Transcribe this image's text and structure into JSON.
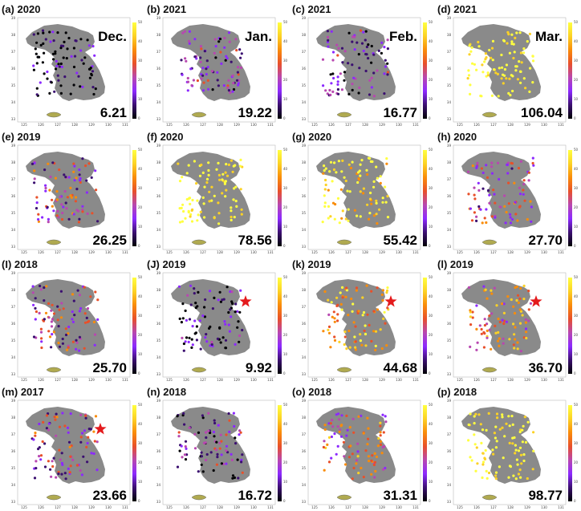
{
  "figure": {
    "colorbar_colors": [
      "#000004",
      "#3b0f70",
      "#8c29ff",
      "#b847b0",
      "#e8502a",
      "#f98c0a",
      "#fcd225",
      "#ffff40"
    ],
    "colorbar_ticks": [
      "0",
      "10",
      "20",
      "30",
      "40",
      "50"
    ],
    "lon_ticks": [
      "125",
      "126",
      "127",
      "128",
      "129",
      "130",
      "131"
    ],
    "lat_ticks": [
      "33",
      "34",
      "35",
      "36",
      "37",
      "38",
      "39"
    ],
    "land_color": "#8a8a8a",
    "star_color": "#e41a1c"
  },
  "chart_data": [
    {
      "type": "scatter",
      "panel": "(a) 2020",
      "month": "Dec.",
      "mean_value": "6.21",
      "colorbar_range": [
        0,
        50
      ],
      "star": false
    },
    {
      "type": "scatter",
      "panel": "(b) 2021",
      "month": "Jan.",
      "mean_value": "19.22",
      "colorbar_range": [
        0,
        50
      ],
      "star": false
    },
    {
      "type": "scatter",
      "panel": "(c) 2021",
      "month": "Feb.",
      "mean_value": "16.77",
      "colorbar_range": [
        0,
        50
      ],
      "star": false
    },
    {
      "type": "scatter",
      "panel": "(d) 2021",
      "month": "Mar.",
      "mean_value": "106.04",
      "colorbar_range": [
        0,
        50
      ],
      "star": false
    },
    {
      "type": "scatter",
      "panel": "(e) 2019",
      "month": "",
      "mean_value": "26.25",
      "colorbar_range": [
        0,
        50
      ],
      "star": false
    },
    {
      "type": "scatter",
      "panel": "(f) 2020",
      "month": "",
      "mean_value": "78.56",
      "colorbar_range": [
        0,
        50
      ],
      "star": false
    },
    {
      "type": "scatter",
      "panel": "(g) 2020",
      "month": "",
      "mean_value": "55.42",
      "colorbar_range": [
        0,
        50
      ],
      "star": false
    },
    {
      "type": "scatter",
      "panel": "(h) 2020",
      "month": "",
      "mean_value": "27.70",
      "colorbar_range": [
        0,
        50
      ],
      "star": false
    },
    {
      "type": "scatter",
      "panel": "(I) 2018",
      "month": "",
      "mean_value": "25.70",
      "colorbar_range": [
        0,
        50
      ],
      "star": false
    },
    {
      "type": "scatter",
      "panel": "(J) 2019",
      "month": "",
      "mean_value": "9.92",
      "colorbar_range": [
        0,
        50
      ],
      "star": true
    },
    {
      "type": "scatter",
      "panel": "(k) 2019",
      "month": "",
      "mean_value": "44.68",
      "colorbar_range": [
        0,
        50
      ],
      "star": true
    },
    {
      "type": "scatter",
      "panel": "(l) 2019",
      "month": "",
      "mean_value": "36.70",
      "colorbar_range": [
        0,
        50
      ],
      "star": true
    },
    {
      "type": "scatter",
      "panel": "(m) 2017",
      "month": "",
      "mean_value": "23.66",
      "colorbar_range": [
        0,
        50
      ],
      "star": true
    },
    {
      "type": "scatter",
      "panel": "(n) 2018",
      "month": "",
      "mean_value": "16.72",
      "colorbar_range": [
        0,
        50
      ],
      "star": false
    },
    {
      "type": "scatter",
      "panel": "(o) 2018",
      "month": "",
      "mean_value": "31.31",
      "colorbar_range": [
        0,
        50
      ],
      "star": false
    },
    {
      "type": "scatter",
      "panel": "(p) 2018",
      "month": "",
      "mean_value": "98.77",
      "colorbar_range": [
        0,
        50
      ],
      "star": false
    }
  ]
}
